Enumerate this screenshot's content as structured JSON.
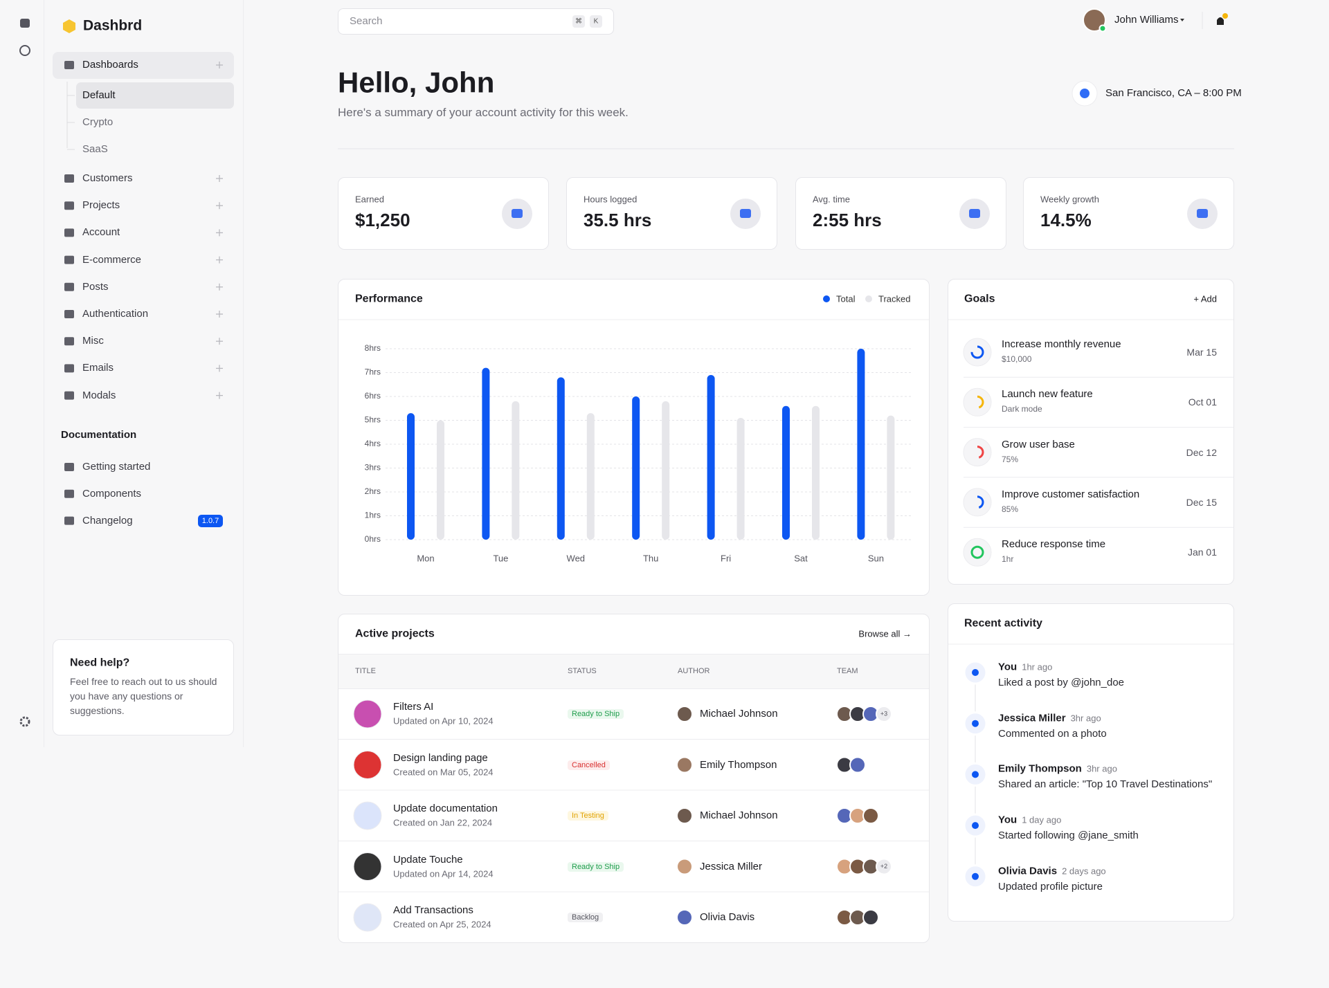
{
  "sidebar": {
    "brand": "Dashbrd",
    "nav": [
      {
        "label": "Dashboards",
        "children": [
          "Default",
          "Crypto",
          "SaaS"
        ]
      },
      {
        "label": "Customers"
      },
      {
        "label": "Projects"
      },
      {
        "label": "Account"
      },
      {
        "label": "E-commerce"
      },
      {
        "label": "Posts"
      },
      {
        "label": "Authentication"
      },
      {
        "label": "Misc"
      },
      {
        "label": "Emails"
      },
      {
        "label": "Modals"
      }
    ],
    "docs_title": "Documentation",
    "docs": [
      {
        "label": "Getting started"
      },
      {
        "label": "Components"
      },
      {
        "label": "Changelog",
        "badge": "1.0.7"
      }
    ],
    "help": {
      "title": "Need help?",
      "text": "Feel free to reach out to us should you have any questions or suggestions."
    }
  },
  "header": {
    "search": "Search",
    "shortcut": [
      "⌘",
      "K"
    ],
    "user": "John Williams"
  },
  "greeting": {
    "title": "Hello, John",
    "subtitle": "Here's a summary of your account activity for this week.",
    "location": "San Francisco, CA – 8:00 PM"
  },
  "stats": [
    {
      "label": "Earned",
      "value": "$1,250"
    },
    {
      "label": "Hours logged",
      "value": "35.5 hrs"
    },
    {
      "label": "Avg. time",
      "value": "2:55 hrs"
    },
    {
      "label": "Weekly growth",
      "value": "14.5%"
    }
  ],
  "chart_data": {
    "type": "bar",
    "title": "Performance",
    "categories": [
      "Mon",
      "Tue",
      "Wed",
      "Thu",
      "Fri",
      "Sat",
      "Sun"
    ],
    "series": [
      {
        "name": "Total",
        "color": "#0d57f2",
        "values": [
          5.3,
          7.2,
          6.8,
          6.0,
          6.9,
          5.6,
          8.0
        ]
      },
      {
        "name": "Tracked",
        "color": "#e6e6ea",
        "values": [
          5.0,
          5.8,
          5.3,
          5.8,
          5.1,
          5.6,
          5.2
        ]
      }
    ],
    "ylim": [
      0,
      8
    ],
    "yticks": [
      {
        "value": 0,
        "label": "0hrs"
      },
      {
        "value": 1,
        "label": "1hrs"
      },
      {
        "value": 2,
        "label": "2hrs"
      },
      {
        "value": 3,
        "label": "3hrs"
      },
      {
        "value": 4,
        "label": "4hrs"
      },
      {
        "value": 5,
        "label": "5hrs"
      },
      {
        "value": 6,
        "label": "6hrs"
      },
      {
        "value": 7,
        "label": "7hrs"
      },
      {
        "value": 8,
        "label": "8hrs"
      }
    ],
    "grid": true
  },
  "goals": {
    "title": "Goals",
    "action": "+ Add",
    "items": [
      {
        "title": "Increase monthly revenue",
        "detail": "$10,000",
        "date": "Mar 15"
      },
      {
        "title": "Launch new feature",
        "detail": "Dark mode",
        "date": "Oct 01"
      },
      {
        "title": "Grow user base",
        "detail": "75%",
        "date": "Dec 12"
      },
      {
        "title": "Improve customer satisfaction",
        "detail": "85%",
        "date": "Dec 15"
      },
      {
        "title": "Reduce response time",
        "detail": "1hr",
        "date": "Jan 01"
      }
    ]
  },
  "projects": {
    "title": "Active projects",
    "action": "Browse all →",
    "columns": [
      "TITLE",
      "STATUS",
      "AUTHOR",
      "TEAM"
    ],
    "rows": [
      {
        "title": "Filters AI",
        "date": "Updated on Apr 10, 2024",
        "status": "Ready to Ship",
        "author": "Michael Johnson",
        "team_more": "+3"
      },
      {
        "title": "Design landing page",
        "date": "Created on Mar 05, 2024",
        "status": "Cancelled",
        "author": "Emily Thompson"
      },
      {
        "title": "Update documentation",
        "date": "Created on Jan 22, 2024",
        "status": "In Testing",
        "author": "Michael Johnson"
      },
      {
        "title": "Update Touche",
        "date": "Updated on Apr 14, 2024",
        "status": "Ready to Ship",
        "author": "Jessica Miller",
        "team_more": "+2"
      },
      {
        "title": "Add Transactions",
        "date": "Created on Apr 25, 2024",
        "status": "Backlog",
        "author": "Olivia Davis"
      }
    ]
  },
  "activity": {
    "title": "Recent activity",
    "items": [
      {
        "who": "You",
        "time": "1hr ago",
        "text": "Liked a post by @john_doe"
      },
      {
        "who": "Jessica Miller",
        "time": "3hr ago",
        "text": "Commented on a photo"
      },
      {
        "who": "Emily Thompson",
        "time": "3hr ago",
        "text": "Shared an article: \"Top 10 Travel Destinations\""
      },
      {
        "who": "You",
        "time": "1 day ago",
        "text": "Started following @jane_smith"
      },
      {
        "who": "Olivia Davis",
        "time": "2 days ago",
        "text": "Updated profile picture"
      }
    ]
  }
}
